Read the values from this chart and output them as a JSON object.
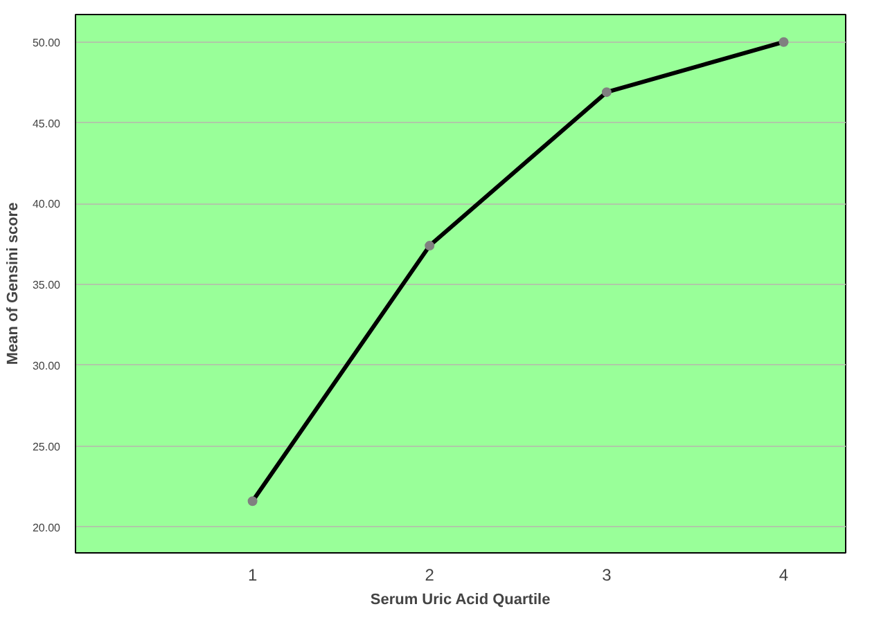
{
  "chart_data": {
    "type": "line",
    "xlabel": "Serum Uric Acid Quartile",
    "ylabel": "Mean of Gensini score",
    "categories": [
      "1",
      "2",
      "3",
      "4"
    ],
    "series": [
      {
        "color": "#000000",
        "values": [
          21.6,
          37.4,
          46.9,
          50.0
        ]
      }
    ],
    "ylim": [
      18.4,
      51.7
    ],
    "yticks": [
      {
        "value": 20,
        "label": "20.00"
      },
      {
        "value": 25,
        "label": "25.00"
      },
      {
        "value": 30,
        "label": "30.00"
      },
      {
        "value": 35,
        "label": "35.00"
      },
      {
        "value": 40,
        "label": "40.00"
      },
      {
        "value": 45,
        "label": "45.00"
      },
      {
        "value": 50,
        "label": "50.00"
      }
    ],
    "grid": "y",
    "marker": "circle",
    "line_style": "solid"
  }
}
